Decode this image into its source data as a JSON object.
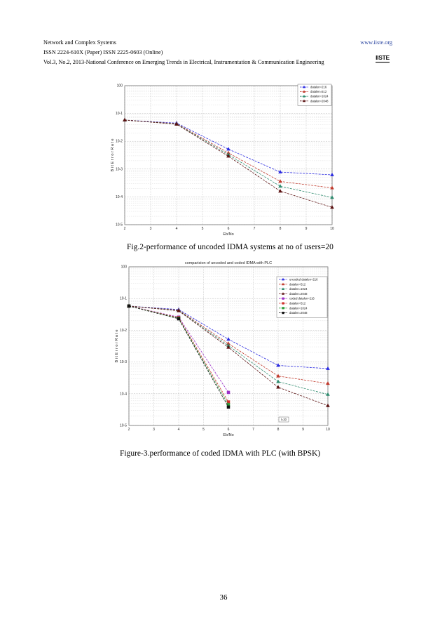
{
  "header": {
    "journal": "Network and Complex Systems",
    "issn": "ISSN 2224-610X (Paper) ISSN 2225-0603 (Online)",
    "volume": "Vol.3, No.2, 2013-National Conference on Emerging Trends in Electrical, Instrumentation & Communication Engineering",
    "url": "www.iiste.org",
    "logo_text": "IISTE"
  },
  "captions": {
    "fig2": "Fig.2-performance of uncoded IDMA systems at no of users=20",
    "fig3": "Figure-3.performance of coded IDMA with PLC (with BPSK)"
  },
  "page_number": "36",
  "chart_data": [
    {
      "type": "line",
      "title": "",
      "xlabel": "Eb/No",
      "ylabel": "B i t   E r r o r   R a t e",
      "yscale": "log",
      "xlim": [
        2,
        10
      ],
      "ylim_exp": [
        -5,
        0
      ],
      "x_ticks": [
        "2",
        "3",
        "4",
        "5",
        "6",
        "7",
        "8",
        "9",
        "10"
      ],
      "y_ticks": [
        "10-5",
        "10-4",
        "10-3",
        "10-2",
        "10-1",
        "100"
      ],
      "legend_position": "top-right",
      "grid": true,
      "series": [
        {
          "name": "datalen=216",
          "color": "#2a2ae0",
          "marker": "triangle",
          "x": [
            2,
            4,
            6,
            8,
            10
          ],
          "y": [
            0.058,
            0.045,
            0.0052,
            0.00078,
            0.00062
          ]
        },
        {
          "name": "datalen=512",
          "color": "#c0392b",
          "marker": "triangle",
          "x": [
            2,
            4,
            6,
            8,
            10
          ],
          "y": [
            0.058,
            0.043,
            0.0038,
            0.00036,
            0.00021
          ]
        },
        {
          "name": "datalen=1024",
          "color": "#2e8b6e",
          "marker": "triangle",
          "x": [
            2,
            4,
            6,
            8,
            10
          ],
          "y": [
            0.058,
            0.042,
            0.0033,
            0.00024,
            9.5e-05
          ]
        },
        {
          "name": "datalen=2048",
          "color": "#5a1010",
          "marker": "triangle",
          "x": [
            2,
            4,
            6,
            8,
            10
          ],
          "y": [
            0.058,
            0.041,
            0.0029,
            0.00016,
            4.2e-05
          ]
        }
      ]
    },
    {
      "type": "line",
      "title": "comparision of uncoded and coded IDMA with PLC",
      "xlabel": "Eb/No",
      "ylabel": "B i t   E r r o r   R a t e",
      "yscale": "log",
      "xlim": [
        2,
        10
      ],
      "ylim_exp": [
        -5,
        0
      ],
      "x_ticks": [
        "2",
        "3",
        "4",
        "5",
        "6",
        "7",
        "8",
        "9",
        "10"
      ],
      "y_ticks": [
        "10-5",
        "10-4",
        "10-3",
        "10-2",
        "10-1",
        "100"
      ],
      "legend_position": "top-right",
      "annotation": "l=20",
      "grid": true,
      "series": [
        {
          "name": "uncoded datalen=216",
          "color": "#2a2ae0",
          "marker": "triangle",
          "x": [
            2,
            4,
            6,
            8,
            10
          ],
          "y": [
            0.058,
            0.045,
            0.0052,
            0.00078,
            0.00062
          ]
        },
        {
          "name": "datalen=512",
          "color": "#c0392b",
          "marker": "triangle",
          "x": [
            2,
            4,
            6,
            8,
            10
          ],
          "y": [
            0.058,
            0.043,
            0.0038,
            0.00036,
            0.00021
          ]
        },
        {
          "name": "datalen=1024",
          "color": "#2e8b6e",
          "marker": "triangle",
          "x": [
            2,
            4,
            6,
            8,
            10
          ],
          "y": [
            0.058,
            0.042,
            0.0033,
            0.00024,
            9.5e-05
          ]
        },
        {
          "name": "datalen=2048",
          "color": "#5a1010",
          "marker": "triangle",
          "x": [
            2,
            4,
            6,
            8,
            10
          ],
          "y": [
            0.058,
            0.041,
            0.0029,
            0.00016,
            4.2e-05
          ]
        },
        {
          "name": "coded datalen=216",
          "color": "#9b30c8",
          "marker": "square",
          "x": [
            2,
            4,
            6
          ],
          "y": [
            0.058,
            0.026,
            0.00011
          ]
        },
        {
          "name": "datalen=512",
          "color": "#d0312d",
          "marker": "square",
          "x": [
            2,
            4,
            6
          ],
          "y": [
            0.058,
            0.025,
            5.5e-05
          ]
        },
        {
          "name": "datalen=1024",
          "color": "#2a9d3a",
          "marker": "square",
          "x": [
            2,
            4,
            6
          ],
          "y": [
            0.058,
            0.024,
            4.5e-05
          ]
        },
        {
          "name": "datalen=2048",
          "color": "#111111",
          "marker": "square",
          "x": [
            2,
            4,
            6
          ],
          "y": [
            0.058,
            0.023,
            3.8e-05
          ]
        }
      ]
    }
  ]
}
